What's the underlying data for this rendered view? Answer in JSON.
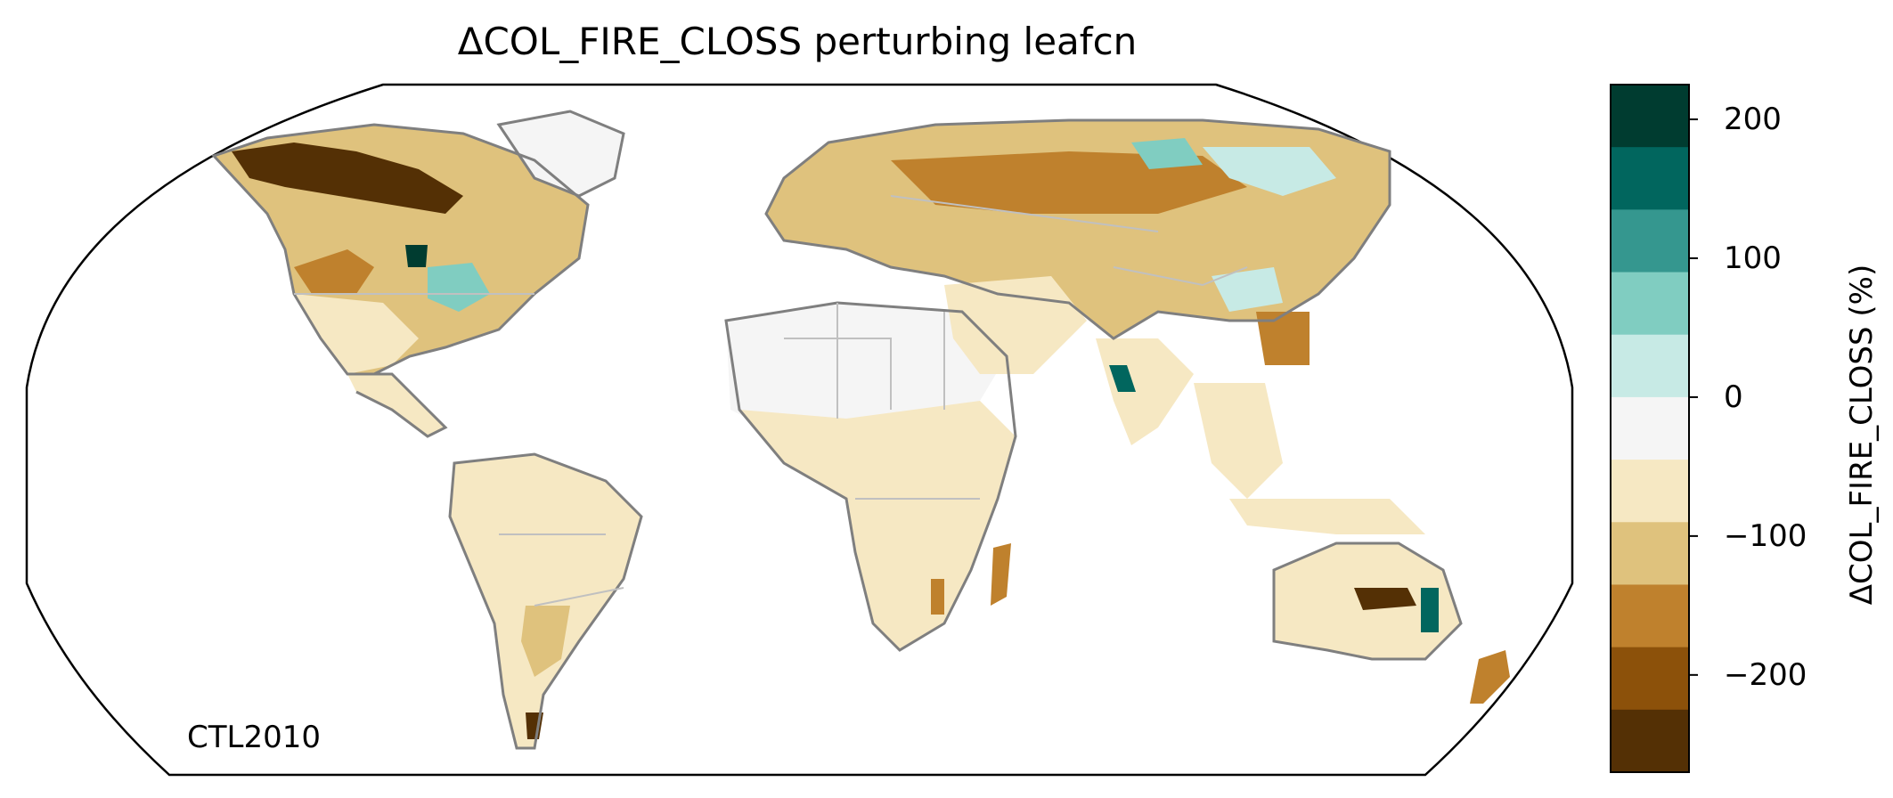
{
  "title": "ΔCOL_FIRE_CLOSS perturbing leafcn",
  "corner_label": "CTL2010",
  "colorbar": {
    "label": "ΔCOL_FIRE_CLOSS (%)",
    "vmin": -225,
    "vmax": 225,
    "ticks": [
      {
        "value": 200,
        "label": "200"
      },
      {
        "value": 100,
        "label": "100"
      },
      {
        "value": 0,
        "label": "0"
      },
      {
        "value": -100,
        "label": "−100"
      },
      {
        "value": -200,
        "label": "−200"
      }
    ],
    "bins": [
      {
        "from": 225,
        "to": 180,
        "color": "#003c30"
      },
      {
        "from": 180,
        "to": 135,
        "color": "#01665e"
      },
      {
        "from": 135,
        "to": 90,
        "color": "#35978f"
      },
      {
        "from": 90,
        "to": 45,
        "color": "#80cdc1"
      },
      {
        "from": 45,
        "to": 0,
        "color": "#c7eae5"
      },
      {
        "from": 0,
        "to": -45,
        "color": "#f5f5f5"
      },
      {
        "from": -45,
        "to": -90,
        "color": "#f6e8c3"
      },
      {
        "from": -90,
        "to": -135,
        "color": "#dfc27d"
      },
      {
        "from": -135,
        "to": -180,
        "color": "#bf812d"
      },
      {
        "from": -180,
        "to": -225,
        "color": "#8c510a"
      },
      {
        "from": -225,
        "to": -270,
        "color": "#543005"
      }
    ]
  },
  "map": {
    "projection": "Robinson",
    "coastline_color": "#7f7f7f",
    "border_color": "#c0c0c0"
  }
}
